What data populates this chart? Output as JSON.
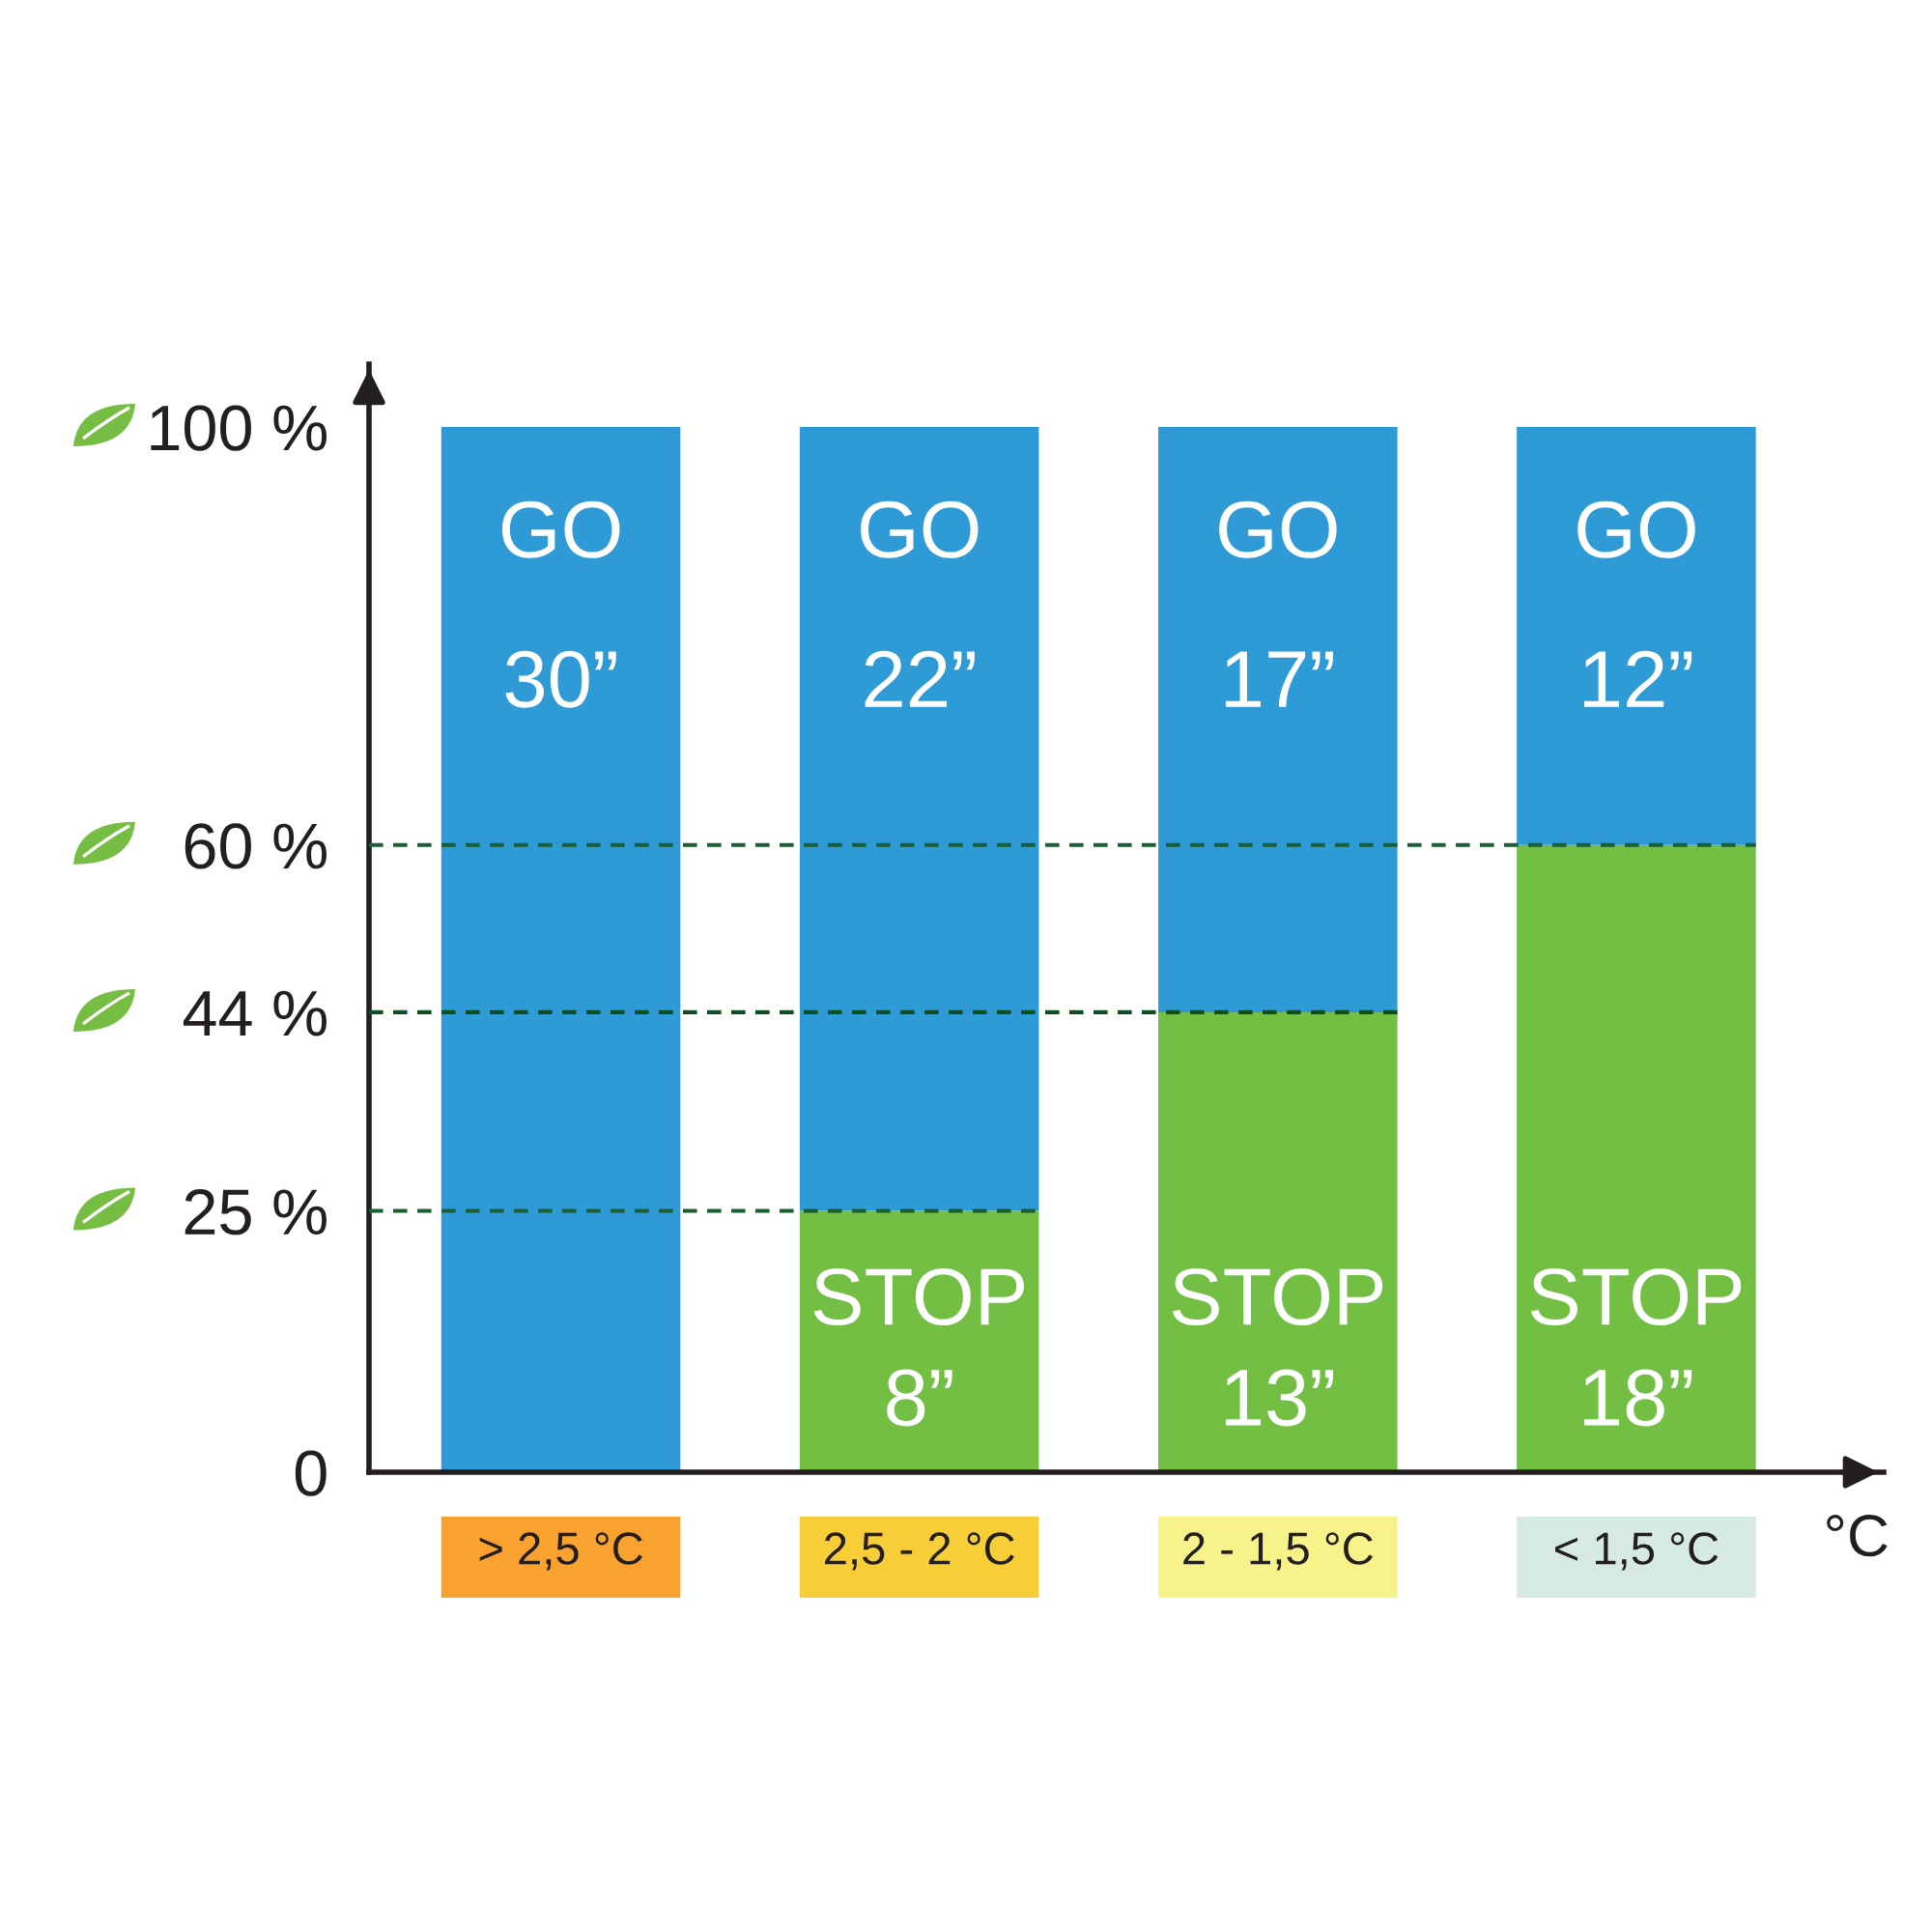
{
  "chart_data": {
    "type": "bar",
    "stacked": true,
    "categories": [
      "> 2,5 °C",
      "2,5 - 2 °C",
      "2 - 1,5 °C",
      "< 1,5 °C"
    ],
    "series": [
      {
        "name": "STOP",
        "color": "#72bf44",
        "values": [
          null,
          25,
          44,
          60
        ]
      },
      {
        "name": "GO",
        "color": "#2e9bd6",
        "values": [
          100,
          75,
          56,
          40
        ]
      }
    ],
    "annotations": [
      "30”",
      "22”",
      "17”",
      "12”",
      "8”",
      "13”",
      "18”"
    ],
    "xlabel": "°C",
    "ylim": [
      0,
      106
    ],
    "yticks": [
      0,
      {
        "value": 25,
        "label": "25 %"
      },
      {
        "value": 44,
        "label": "44 %"
      },
      {
        "value": 60,
        "label": "60 %"
      },
      {
        "value": 100,
        "label": "100 %"
      }
    ],
    "ref_lines": [
      {
        "axis": "y",
        "value": 25,
        "color": "#1b5e34",
        "line_style": "dashed"
      },
      {
        "axis": "y",
        "value": 44,
        "color": "#0f4d23",
        "line_style": "dashed"
      },
      {
        "axis": "y",
        "value": 60,
        "color": "#1b5e34",
        "line_style": "dashed"
      }
    ],
    "grid": false,
    "legend": false
  }
}
